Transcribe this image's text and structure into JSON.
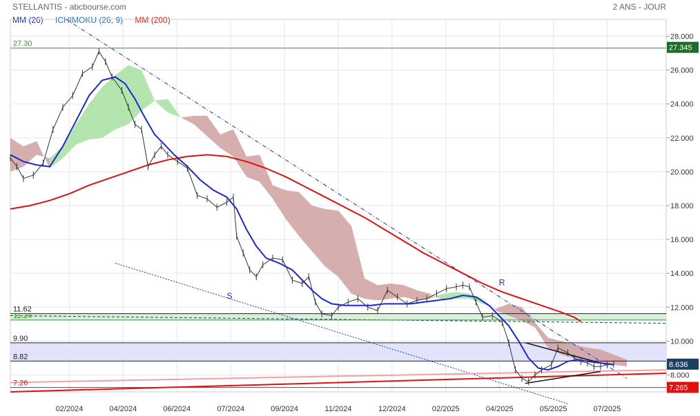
{
  "header": {
    "title": "STELLANTIS - abcbourse.com",
    "period": "2 ANS - JOUR"
  },
  "legend": [
    {
      "label": "MM (26)",
      "color": "#1a28d6"
    },
    {
      "label": "ICHIMOKU (26, 9)",
      "color": "#1a6fcf"
    },
    {
      "label": "MM (200)",
      "color": "#e01010"
    }
  ],
  "chart_data": {
    "type": "line",
    "ylim": [
      7,
      29
    ],
    "yticks": [
      "28.000",
      "26.000",
      "24.000",
      "22.000",
      "20.000",
      "18.000",
      "16.000",
      "14.000",
      "12.000",
      "10.000",
      "8.000"
    ],
    "xticks": [
      "02/2024",
      "04/2024",
      "06/2024",
      "07/2024",
      "09/2024",
      "11/2024",
      "12/2024",
      "02/2025",
      "04/2025",
      "05/2025",
      "07/2025"
    ],
    "price_badges": [
      {
        "label": "27.345",
        "value": 27.345,
        "color": "#1e6b2a"
      },
      {
        "label": "8.636",
        "value": 8.636,
        "color": "#1f3f5e"
      },
      {
        "label": "7.265",
        "value": 7.265,
        "color": "#e01010"
      }
    ],
    "levels": [
      {
        "label": "27.30",
        "value": 27.3,
        "color": "#2a9a2a"
      },
      {
        "label": "11.62",
        "value": 11.62,
        "color": "#222222"
      },
      {
        "label": "11.24",
        "value": 11.24,
        "color": "#2a9a2a"
      },
      {
        "label": "9.90",
        "value": 9.9,
        "color": "#222222"
      },
      {
        "label": "8.82",
        "value": 8.82,
        "color": "#222222"
      },
      {
        "label": "7.26",
        "value": 7.26,
        "color": "#e01010"
      }
    ],
    "annotations": [
      {
        "label": "S",
        "x": 0.33,
        "y": 12.5
      },
      {
        "label": "R",
        "x": 0.745,
        "y": 13.3
      }
    ],
    "price": [
      [
        0,
        20.8
      ],
      [
        0.01,
        20.3
      ],
      [
        0.02,
        19.6
      ],
      [
        0.035,
        19.8
      ],
      [
        0.05,
        20.5
      ],
      [
        0.065,
        22.5
      ],
      [
        0.08,
        23.8
      ],
      [
        0.095,
        24.5
      ],
      [
        0.11,
        25.8
      ],
      [
        0.125,
        26.2
      ],
      [
        0.135,
        27.1
      ],
      [
        0.145,
        26.5
      ],
      [
        0.155,
        25.6
      ],
      [
        0.17,
        24.8
      ],
      [
        0.18,
        23.8
      ],
      [
        0.19,
        22.8
      ],
      [
        0.2,
        22.5
      ],
      [
        0.21,
        20.3
      ],
      [
        0.22,
        21
      ],
      [
        0.23,
        21.5
      ],
      [
        0.24,
        21
      ],
      [
        0.255,
        20.6
      ],
      [
        0.27,
        20.2
      ],
      [
        0.285,
        18.6
      ],
      [
        0.3,
        18.4
      ],
      [
        0.315,
        17.9
      ],
      [
        0.33,
        18.2
      ],
      [
        0.34,
        18.5
      ],
      [
        0.345,
        16.2
      ],
      [
        0.355,
        15.2
      ],
      [
        0.365,
        14.2
      ],
      [
        0.375,
        13.8
      ],
      [
        0.385,
        14.5
      ],
      [
        0.4,
        14.9
      ],
      [
        0.415,
        14.8
      ],
      [
        0.43,
        13.6
      ],
      [
        0.445,
        13.4
      ],
      [
        0.455,
        13.8
      ],
      [
        0.465,
        12.3
      ],
      [
        0.475,
        11.6
      ],
      [
        0.49,
        11.5
      ],
      [
        0.5,
        12
      ],
      [
        0.515,
        12.3
      ],
      [
        0.53,
        12.5
      ],
      [
        0.545,
        12
      ],
      [
        0.56,
        11.8
      ],
      [
        0.575,
        13
      ],
      [
        0.59,
        12.6
      ],
      [
        0.605,
        12.2
      ],
      [
        0.62,
        12.4
      ],
      [
        0.635,
        12.5
      ],
      [
        0.65,
        12.8
      ],
      [
        0.665,
        13.1
      ],
      [
        0.68,
        13.2
      ],
      [
        0.69,
        13.3
      ],
      [
        0.7,
        13.2
      ],
      [
        0.71,
        12.3
      ],
      [
        0.72,
        11.4
      ],
      [
        0.735,
        11.5
      ],
      [
        0.75,
        11.1
      ],
      [
        0.76,
        9.9
      ],
      [
        0.77,
        8.3
      ],
      [
        0.78,
        7.8
      ],
      [
        0.79,
        7.6
      ],
      [
        0.8,
        8
      ],
      [
        0.81,
        8.3
      ],
      [
        0.825,
        8.6
      ],
      [
        0.835,
        9.6
      ],
      [
        0.85,
        9.3
      ],
      [
        0.86,
        9
      ],
      [
        0.87,
        8.8
      ],
      [
        0.88,
        8.7
      ],
      [
        0.89,
        8.5
      ],
      [
        0.9,
        8.5
      ],
      [
        0.91,
        8.6
      ],
      [
        0.92,
        8.636
      ]
    ],
    "mm26": [
      [
        0,
        21
      ],
      [
        0.02,
        20.6
      ],
      [
        0.04,
        20.4
      ],
      [
        0.06,
        20.3
      ],
      [
        0.08,
        21.5
      ],
      [
        0.1,
        23
      ],
      [
        0.12,
        24.5
      ],
      [
        0.14,
        25.4
      ],
      [
        0.16,
        25.6
      ],
      [
        0.175,
        25.2
      ],
      [
        0.19,
        24.3
      ],
      [
        0.205,
        23.2
      ],
      [
        0.22,
        22.2
      ],
      [
        0.235,
        21.6
      ],
      [
        0.25,
        21
      ],
      [
        0.27,
        20.3
      ],
      [
        0.29,
        19.5
      ],
      [
        0.31,
        18.9
      ],
      [
        0.33,
        18.5
      ],
      [
        0.345,
        17.8
      ],
      [
        0.36,
        16.6
      ],
      [
        0.375,
        15.6
      ],
      [
        0.39,
        14.9
      ],
      [
        0.41,
        14.6
      ],
      [
        0.43,
        14.2
      ],
      [
        0.445,
        13.6
      ],
      [
        0.46,
        13
      ],
      [
        0.475,
        12.5
      ],
      [
        0.49,
        12.2
      ],
      [
        0.51,
        12.1
      ],
      [
        0.53,
        12.1
      ],
      [
        0.55,
        12.1
      ],
      [
        0.57,
        12.2
      ],
      [
        0.59,
        12.2
      ],
      [
        0.61,
        12.2
      ],
      [
        0.63,
        12.3
      ],
      [
        0.65,
        12.4
      ],
      [
        0.67,
        12.5
      ],
      [
        0.69,
        12.7
      ],
      [
        0.71,
        12.6
      ],
      [
        0.73,
        12.1
      ],
      [
        0.745,
        11.5
      ],
      [
        0.76,
        10.9
      ],
      [
        0.775,
        10
      ],
      [
        0.79,
        9
      ],
      [
        0.805,
        8.4
      ],
      [
        0.82,
        8.3
      ],
      [
        0.835,
        8.5
      ],
      [
        0.85,
        8.8
      ],
      [
        0.865,
        8.9
      ],
      [
        0.88,
        8.8
      ],
      [
        0.9,
        8.7
      ],
      [
        0.92,
        8.6
      ]
    ],
    "mm200": [
      [
        0,
        17.8
      ],
      [
        0.03,
        18
      ],
      [
        0.06,
        18.3
      ],
      [
        0.09,
        18.7
      ],
      [
        0.12,
        19.2
      ],
      [
        0.15,
        19.6
      ],
      [
        0.18,
        20
      ],
      [
        0.21,
        20.4
      ],
      [
        0.24,
        20.7
      ],
      [
        0.27,
        20.9
      ],
      [
        0.3,
        21
      ],
      [
        0.33,
        20.9
      ],
      [
        0.36,
        20.6
      ],
      [
        0.39,
        20.2
      ],
      [
        0.42,
        19.7
      ],
      [
        0.45,
        19.1
      ],
      [
        0.48,
        18.5
      ],
      [
        0.51,
        17.9
      ],
      [
        0.54,
        17.3
      ],
      [
        0.57,
        16.6
      ],
      [
        0.6,
        15.9
      ],
      [
        0.63,
        15.2
      ],
      [
        0.66,
        14.6
      ],
      [
        0.69,
        14
      ],
      [
        0.72,
        13.4
      ],
      [
        0.75,
        12.9
      ],
      [
        0.78,
        12.5
      ],
      [
        0.81,
        12.1
      ],
      [
        0.84,
        11.7
      ],
      [
        0.86,
        11.4
      ],
      [
        0.87,
        11.15
      ]
    ],
    "cloud": [
      [
        0,
        20,
        22
      ],
      [
        0.02,
        20.3,
        21.5
      ],
      [
        0.04,
        21,
        21.8
      ],
      [
        0.06,
        20.8,
        20.2
      ],
      [
        0.08,
        21.5,
        20.8
      ],
      [
        0.1,
        22.8,
        21.6
      ],
      [
        0.12,
        24,
        21.9
      ],
      [
        0.14,
        25,
        22
      ],
      [
        0.16,
        25.7,
        22.5
      ],
      [
        0.18,
        26.3,
        22.8
      ],
      [
        0.2,
        26,
        23.6
      ],
      [
        0.22,
        24.2,
        24.2
      ],
      [
        0.24,
        24.3,
        23.5
      ],
      [
        0.26,
        23.2,
        23.2
      ],
      [
        0.28,
        22.8,
        23.3
      ],
      [
        0.3,
        22.1,
        23.3
      ],
      [
        0.32,
        21.4,
        22.2
      ],
      [
        0.34,
        20.9,
        22.5
      ],
      [
        0.36,
        19.7,
        20.9
      ],
      [
        0.38,
        19.4,
        21
      ],
      [
        0.4,
        18.4,
        19.2
      ],
      [
        0.42,
        17.2,
        18.9
      ],
      [
        0.44,
        16.2,
        18.8
      ],
      [
        0.46,
        15.3,
        18
      ],
      [
        0.48,
        14.4,
        17.8
      ],
      [
        0.5,
        13.8,
        17.7
      ],
      [
        0.52,
        12.8,
        16.8
      ],
      [
        0.54,
        12.5,
        13.7
      ],
      [
        0.56,
        12.4,
        13.3
      ],
      [
        0.58,
        12.5,
        13.4
      ],
      [
        0.6,
        12.6,
        13.3
      ],
      [
        0.62,
        12.4,
        13
      ],
      [
        0.64,
        12.5,
        12.8
      ],
      [
        0.66,
        12.8,
        12.4
      ],
      [
        0.68,
        12.9,
        12.5
      ],
      [
        0.7,
        12.8,
        12.5
      ],
      [
        0.72,
        12.5,
        12.2
      ],
      [
        0.74,
        11.8,
        11.9
      ],
      [
        0.76,
        11.5,
        12.2
      ],
      [
        0.78,
        11.2,
        12
      ],
      [
        0.8,
        10.8,
        11.1
      ],
      [
        0.82,
        9.6,
        10.2
      ],
      [
        0.84,
        9.2,
        10
      ],
      [
        0.86,
        9,
        9.8
      ],
      [
        0.88,
        8.8,
        9.6
      ],
      [
        0.9,
        8.7,
        9.5
      ],
      [
        0.92,
        8.6,
        9.2
      ],
      [
        0.94,
        8.5,
        8.9
      ]
    ]
  }
}
